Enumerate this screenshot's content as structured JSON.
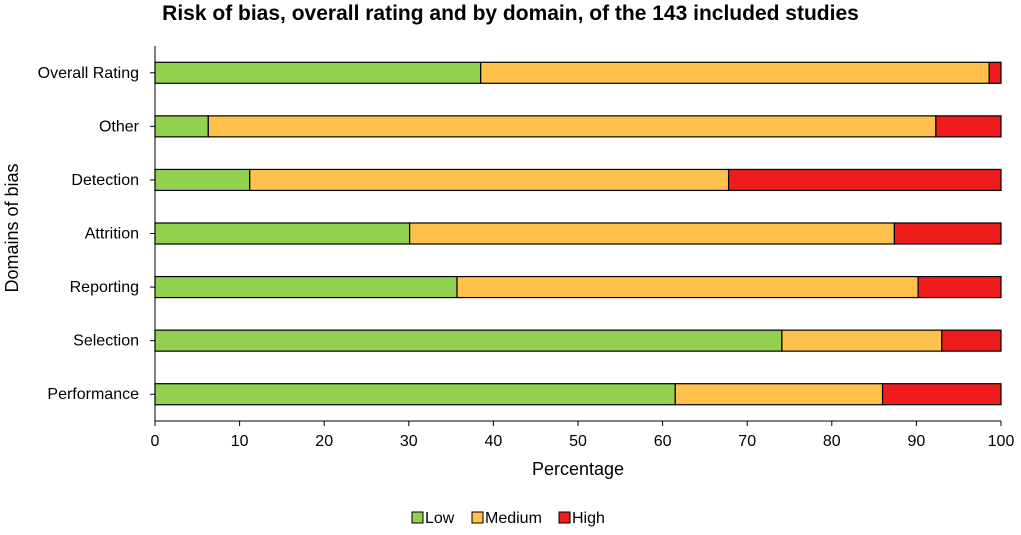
{
  "chart_data": {
    "type": "bar",
    "orientation": "horizontal",
    "stacked": true,
    "title": "Risk of bias, overall rating and by domain, of the 143 included studies",
    "xlabel": "Percentage",
    "ylabel": "Domains of bias",
    "xlim": [
      0,
      100
    ],
    "xticks": [
      0,
      10,
      20,
      30,
      40,
      50,
      60,
      70,
      80,
      90,
      100
    ],
    "categories": [
      "Overall Rating",
      "Other",
      "Detection",
      "Attrition",
      "Reporting",
      "Selection",
      "Performance"
    ],
    "series": [
      {
        "name": "Low",
        "color": "#92d050",
        "values": [
          38.5,
          6.3,
          11.2,
          30.1,
          35.7,
          74.1,
          61.5
        ]
      },
      {
        "name": "Medium",
        "color": "#ffc04c",
        "values": [
          60.1,
          86.0,
          56.6,
          57.3,
          54.5,
          18.9,
          24.5
        ]
      },
      {
        "name": "High",
        "color": "#ee1c1c",
        "values": [
          1.4,
          7.7,
          32.2,
          12.6,
          9.8,
          7.0,
          14.0
        ]
      }
    ],
    "grid": false,
    "legend_position": "bottom"
  }
}
